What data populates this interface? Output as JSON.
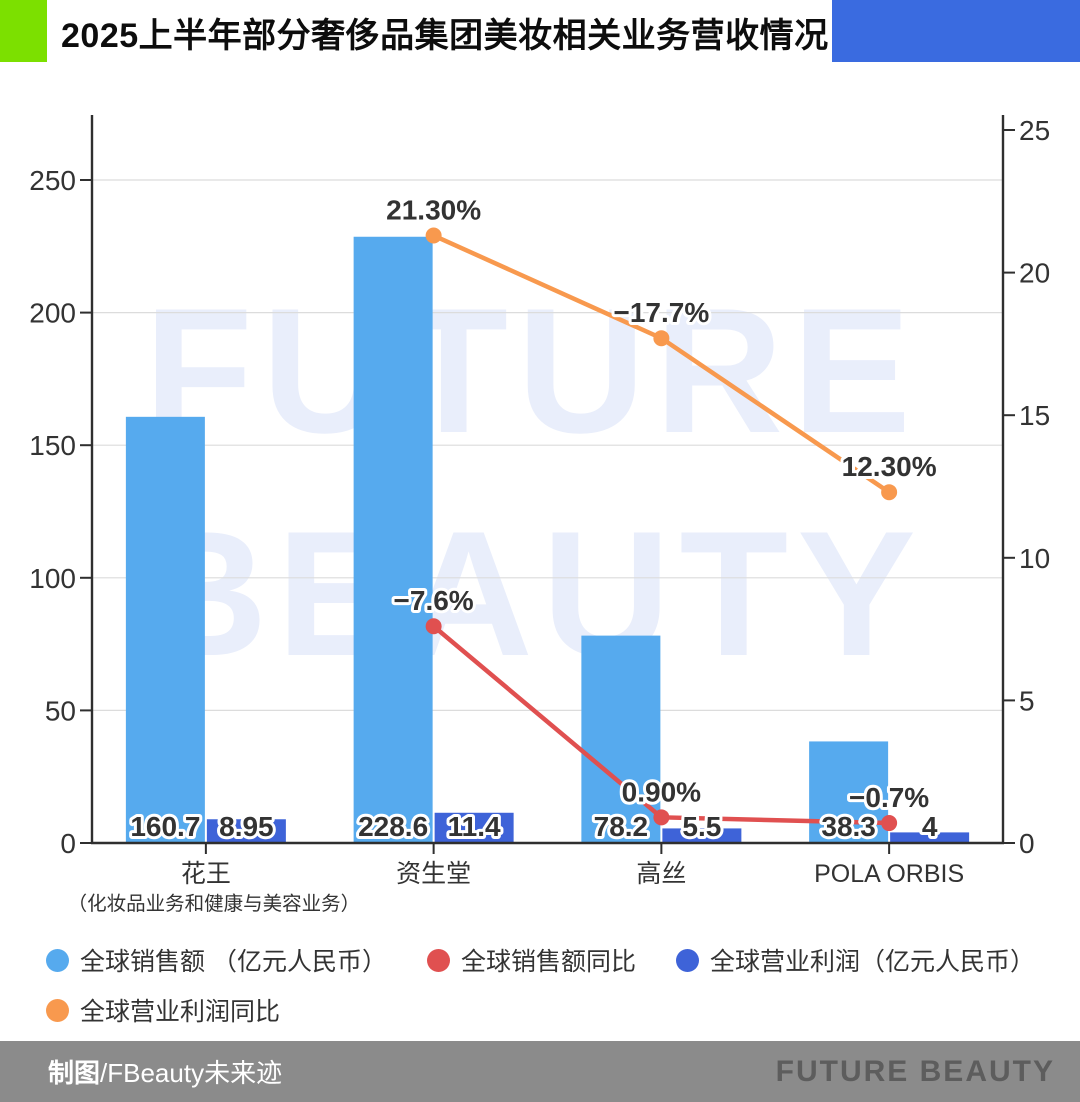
{
  "header": {
    "title": "2025上半年部分奢侈品集团美妆相关业务营收情况"
  },
  "theme": {
    "accent_green": "#7ce000",
    "accent_blue": "#3a6be0",
    "footer_bg": "#8b8b8b",
    "brand_color": "#5d5d5d",
    "watermark_color": "#e9eefb",
    "grid_color": "#dcdcdc",
    "axis_color": "#2f2f2f"
  },
  "chart_data": {
    "type": "combo (bar + line, dual axis)",
    "categories": [
      "花王",
      "资生堂",
      "高丝",
      "POLA ORBIS"
    ],
    "category_note": {
      "index": 0,
      "text": "（化妆品业务和健康与美容业务）"
    },
    "left_axis": {
      "ticks": [
        0,
        50,
        100,
        150,
        200,
        250
      ],
      "max": 250,
      "label": ""
    },
    "right_axis": {
      "ticks": [
        0,
        5,
        10,
        15,
        20,
        25
      ],
      "max": 25,
      "label": ""
    },
    "grid": "horizontal, left-axis steps of 50",
    "legend_position": "bottom-left, two rows",
    "note": "line series are plotted at absolute values on the right axis; labels keep the sign",
    "series": [
      {
        "name": "全球销售额 （亿元人民币）",
        "type": "bar",
        "axis": "left",
        "color": "#56aaee",
        "values": [
          160.7,
          228.6,
          78.2,
          38.3
        ],
        "labels": [
          "160.7",
          "228.6",
          "78.2",
          "38.3"
        ]
      },
      {
        "name": "全球营业利润（亿元人民币）",
        "type": "bar",
        "axis": "left",
        "color": "#3e63d8",
        "values": [
          8.95,
          11.4,
          5.5,
          4
        ],
        "labels": [
          "8.95",
          "11.4",
          "5.5",
          "4"
        ]
      },
      {
        "name": "全球销售额同比",
        "type": "line",
        "axis": "right",
        "color": "#e05050",
        "values": [
          null,
          -7.6,
          0.9,
          -0.7
        ],
        "labels": [
          null,
          "−7.6%",
          "0.90%",
          "−0.7%"
        ]
      },
      {
        "name": "全球营业利润同比",
        "type": "line",
        "axis": "right",
        "color": "#f8994e",
        "values": [
          null,
          21.3,
          -17.7,
          12.3
        ],
        "labels": [
          null,
          "21.30%",
          "−17.7%",
          "12.30%"
        ]
      }
    ],
    "watermark": [
      "FUTURE",
      "BEAUTY"
    ]
  },
  "legend": {
    "items": [
      {
        "label": "全球销售额 （亿元人民币）",
        "color": "#56aaee"
      },
      {
        "label": "全球销售额同比",
        "color": "#e05050"
      },
      {
        "label": "全球营业利润（亿元人民币）",
        "color": "#3e63d8"
      },
      {
        "label": "全球营业利润同比",
        "color": "#f8994e"
      }
    ]
  },
  "footer": {
    "credit_bold": "制图",
    "credit_rest": "/FBeauty未来迹",
    "brand": "FUTURE BEAUTY"
  }
}
